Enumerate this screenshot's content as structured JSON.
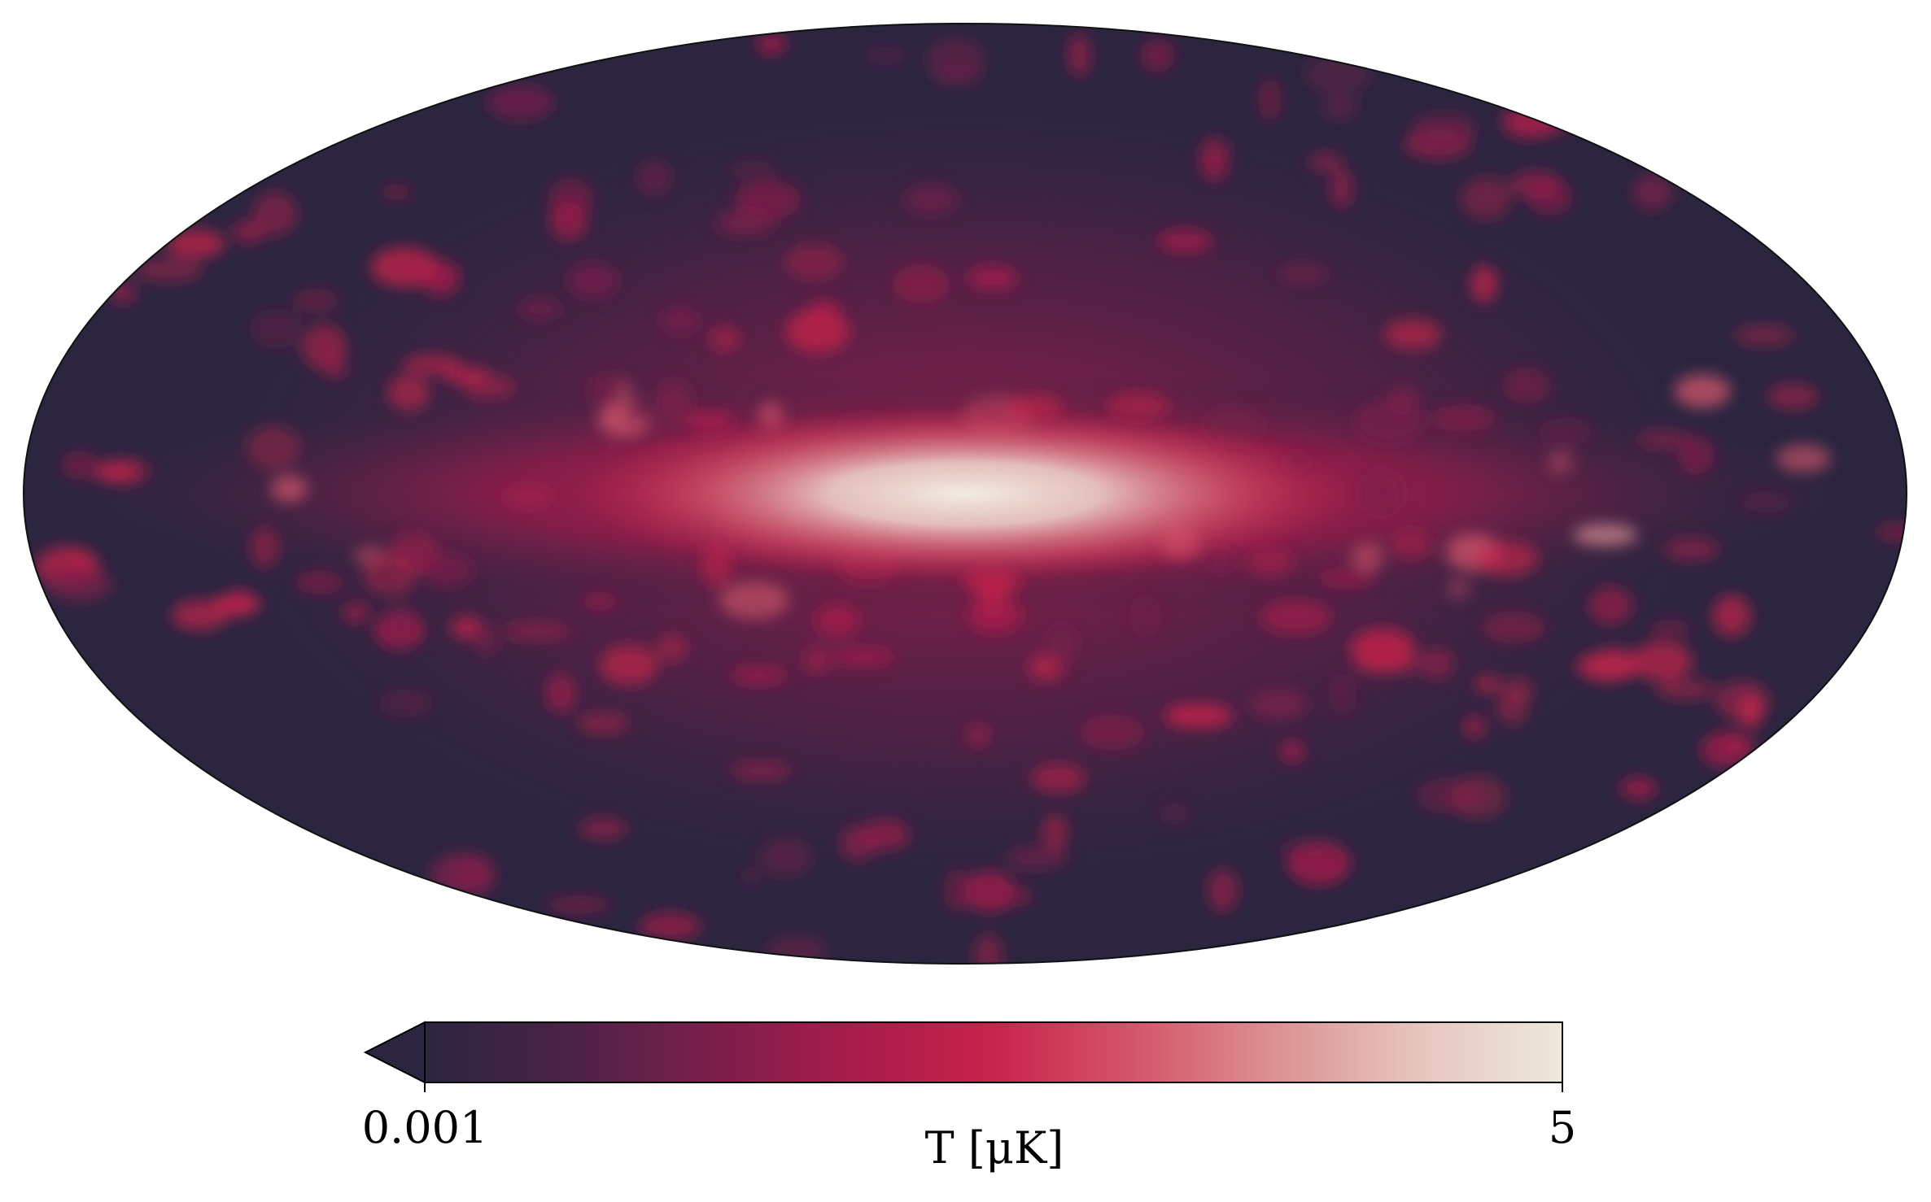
{
  "chart_data": {
    "type": "mollweide",
    "colormap": [
      "#2b2540",
      "#4a2347",
      "#7a1f4b",
      "#a81c4b",
      "#c8234b",
      "#d4566b",
      "#dc9294",
      "#e6c6bf",
      "#ede8dc"
    ],
    "colorbar": {
      "label": "T [μK]",
      "lim": [
        0.001,
        5
      ],
      "ticks": [
        0.001,
        5
      ],
      "scale": "log",
      "extend": "min"
    }
  }
}
